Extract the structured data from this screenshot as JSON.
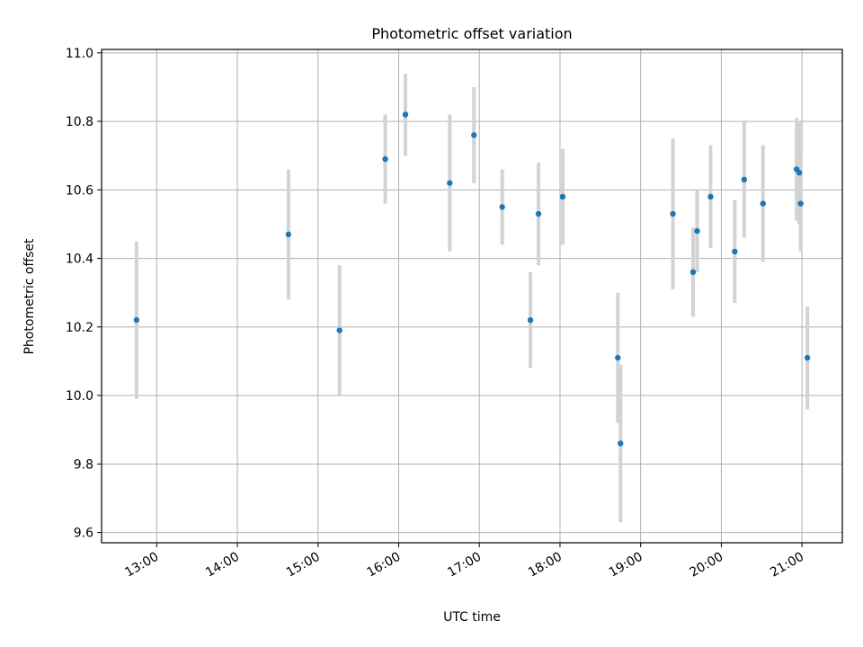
{
  "chart_data": {
    "type": "scatter",
    "title": "Photometric offset variation",
    "xlabel": "UTC time",
    "ylabel": "Photometric offset",
    "x_ticks": [
      "13:00",
      "14:00",
      "15:00",
      "16:00",
      "17:00",
      "18:00",
      "19:00",
      "20:00",
      "21:00"
    ],
    "xlim": [
      "12:19",
      "21:30"
    ],
    "y_ticks": [
      "9.6",
      "9.8",
      "10.0",
      "10.2",
      "10.4",
      "10.6",
      "10.8",
      "11.0"
    ],
    "ylim": [
      9.57,
      11.01
    ],
    "grid": true,
    "colors": {
      "point": "#1f77b4",
      "errorbar": "#d3d3d3"
    },
    "series": [
      {
        "x": [
          "12:45",
          "14:38",
          "15:16",
          "15:50",
          "16:05",
          "16:38",
          "16:56",
          "17:17",
          "17:38",
          "17:44",
          "18:02",
          "18:43",
          "18:45",
          "19:24",
          "19:39",
          "19:42",
          "19:52",
          "20:10",
          "20:17",
          "20:31",
          "20:56",
          "20:58",
          "20:59",
          "21:04"
        ],
        "y": [
          10.22,
          10.47,
          10.19,
          10.69,
          10.82,
          10.62,
          10.76,
          10.55,
          10.22,
          10.53,
          10.58,
          10.11,
          9.86,
          10.53,
          10.36,
          10.48,
          10.58,
          10.42,
          10.63,
          10.56,
          10.66,
          10.65,
          10.56,
          10.11
        ],
        "yerr": [
          0.23,
          0.19,
          0.19,
          0.13,
          0.12,
          0.2,
          0.14,
          0.11,
          0.14,
          0.15,
          0.14,
          0.19,
          0.23,
          0.22,
          0.13,
          0.12,
          0.15,
          0.15,
          0.17,
          0.17,
          0.15,
          0.15,
          0.14,
          0.15
        ]
      }
    ]
  }
}
